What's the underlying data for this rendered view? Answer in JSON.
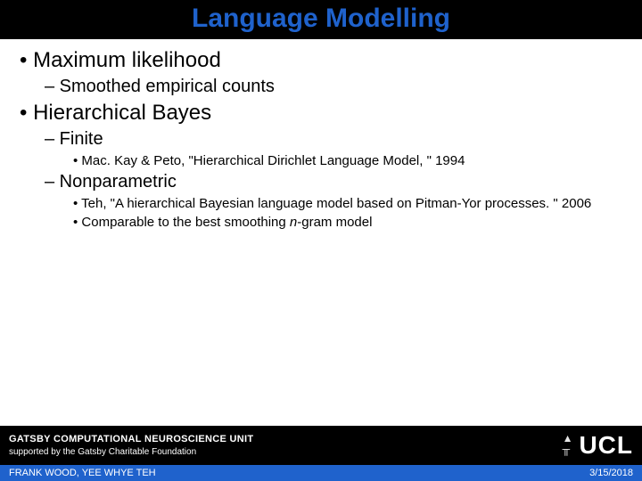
{
  "title": "Language Modelling",
  "colors": {
    "title_bg": "#000000",
    "title_text": "#1f62cc",
    "body_bg": "#ffffff",
    "body_text": "#000000",
    "footer_top_bg": "#000000",
    "footer_top_text": "#ffffff",
    "footer_bottom_bg": "#1f62cc",
    "footer_bottom_text": "#ffffff"
  },
  "bullets": {
    "b1": "• Maximum likelihood",
    "b1a": "– Smoothed empirical counts",
    "b2": "• Hierarchical Bayes",
    "b2a": "– Finite",
    "b2a1": "• Mac. Kay & Peto, \"Hierarchical Dirichlet Language Model, \" 1994",
    "b2b": "– Nonparametric",
    "b2b1": "• Teh, \"A hierarchical Bayesian language model based on Pitman-Yor processes. \" 2006",
    "b2b2_prefix": "• Comparable to the best smoothing ",
    "b2b2_italic": "n",
    "b2b2_suffix": "-gram model"
  },
  "footer": {
    "unit": "GATSBY COMPUTATIONAL NEUROSCIENCE UNIT",
    "supported": "supported by the Gatsby Charitable Foundation",
    "logo_text": "UCL",
    "authors": "FRANK WOOD, YEE WHYE TEH",
    "date": "3/15/2018"
  }
}
